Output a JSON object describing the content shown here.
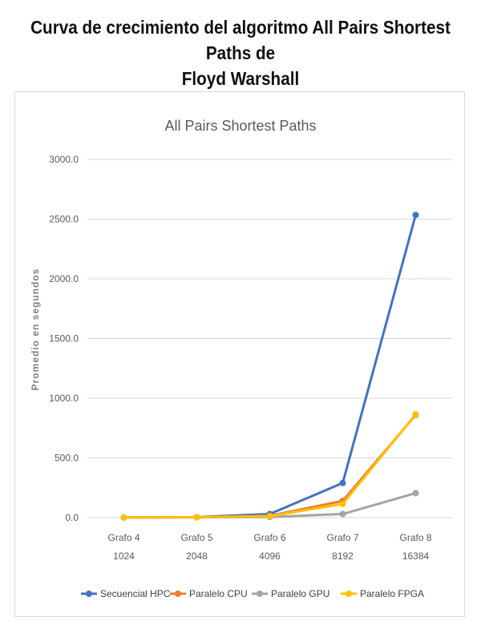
{
  "page": {
    "title_line1": "Curva de crecimiento del algoritmo All Pairs Shortest Paths de",
    "title_line2": "Floyd Warshall"
  },
  "chart_data": {
    "type": "line",
    "title": "All Pairs Shortest Paths",
    "ylabel": "Promedio en segundos",
    "xlabel": "",
    "categories": [
      {
        "name": "Grafo 4",
        "size": "1024"
      },
      {
        "name": "Grafo 5",
        "size": "2048"
      },
      {
        "name": "Grafo 6",
        "size": "4096"
      },
      {
        "name": "Grafo 7",
        "size": "8192"
      },
      {
        "name": "Grafo 8",
        "size": "16384"
      }
    ],
    "ylim": [
      0,
      3000
    ],
    "yticks": [
      "0.0",
      "500.0",
      "1000.0",
      "1500.0",
      "2000.0",
      "2500.0",
      "3000.0"
    ],
    "grid": true,
    "legend_position": "bottom",
    "series": [
      {
        "name": "Secuencial HPC",
        "color": "#4472c4",
        "values": [
          1,
          4,
          30,
          290,
          2535
        ]
      },
      {
        "name": "Paralelo CPU",
        "color": "#ed7d31",
        "values": [
          1,
          3,
          15,
          140,
          860
        ]
      },
      {
        "name": "Paralelo GPU",
        "color": "#a5a5a5",
        "values": [
          1,
          2,
          5,
          30,
          205
        ]
      },
      {
        "name": "Paralelo FPGA",
        "color": "#ffc000",
        "values": [
          1,
          3,
          12,
          115,
          865
        ]
      }
    ]
  }
}
